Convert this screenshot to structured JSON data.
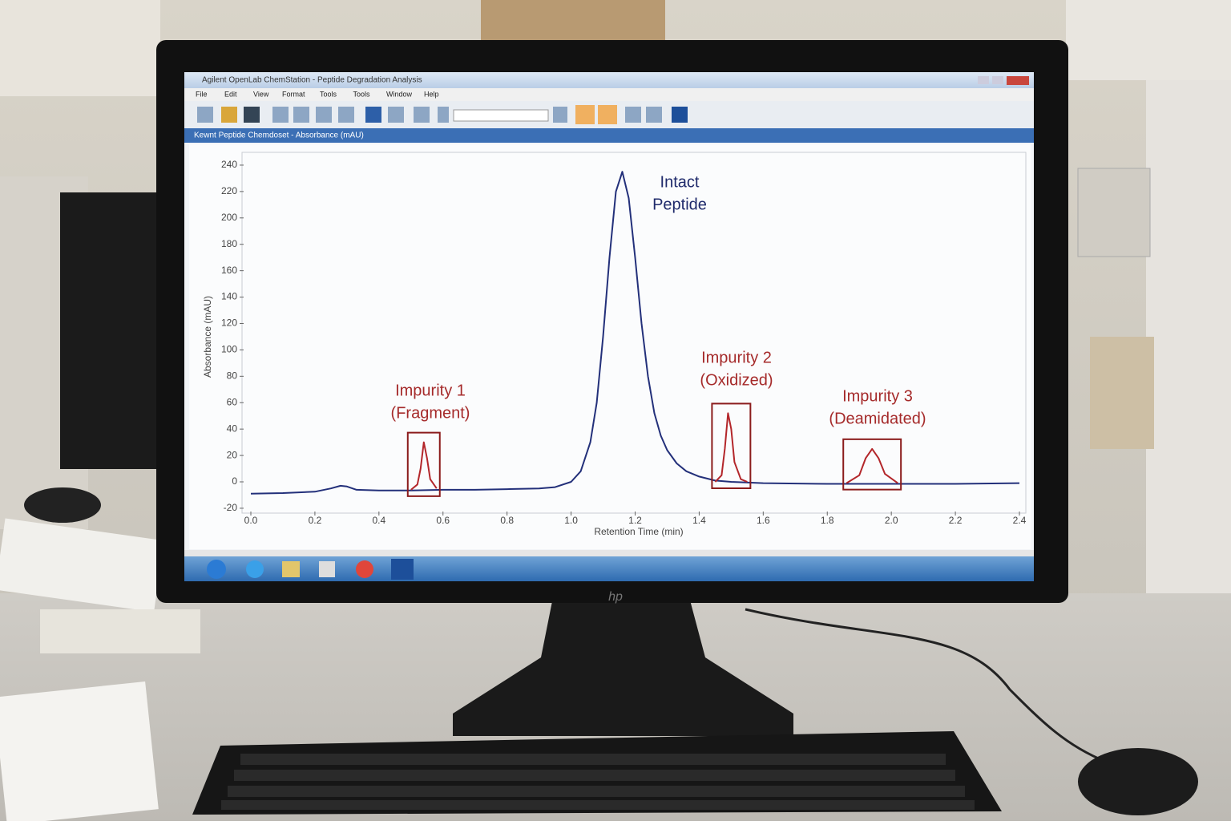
{
  "window": {
    "title": "Agilent OpenLab ChemStation - Peptide Degradation Analysis",
    "menu": [
      "File",
      "Edit",
      "View",
      "Format",
      "Tools",
      "Tools",
      "Window",
      "Help"
    ],
    "pane_title": "Kewnt Peptide Chemdoset - Absorbance (mAU)"
  },
  "chart_data": {
    "type": "line",
    "x_label": "Retention Time (min)",
    "y_label": "Absorbance (mAU)",
    "xlim": [
      0,
      2.4
    ],
    "ylim": [
      -20,
      245
    ],
    "xticks": [
      {
        "value": 0,
        "label": "0.0"
      },
      0.2,
      0.4,
      0.6,
      0.8,
      {
        "value": 1,
        "label": "1.0"
      },
      1.2,
      1.4,
      1.6,
      1.8,
      {
        "value": 2,
        "label": "2.0"
      },
      2.2,
      2.4
    ],
    "yticks": [
      -20,
      0,
      20,
      40,
      60,
      80,
      100,
      120,
      140,
      160,
      180,
      200,
      220,
      240
    ],
    "series": [
      {
        "color": "#23307a",
        "x": [
          0,
          0.1,
          0.2,
          0.25,
          0.28,
          0.3,
          0.33,
          0.4,
          0.5,
          0.6,
          0.7,
          0.8,
          0.9,
          0.95,
          1.0,
          1.03,
          1.06,
          1.08,
          1.1,
          1.12,
          1.14,
          1.16,
          1.18,
          1.2,
          1.22,
          1.24,
          1.26,
          1.28,
          1.3,
          1.33,
          1.36,
          1.4,
          1.45,
          1.5,
          1.6,
          1.8,
          2.0,
          2.2,
          2.4
        ],
        "values": [
          -9,
          -8.5,
          -7.5,
          -5,
          -3,
          -3.5,
          -6,
          -6.5,
          -6.5,
          -6,
          -6,
          -5.5,
          -5,
          -4,
          0,
          8,
          30,
          60,
          110,
          170,
          220,
          235,
          215,
          170,
          120,
          80,
          52,
          35,
          24,
          14,
          8,
          4,
          1,
          0,
          -1,
          -1.5,
          -1.5,
          -1.5,
          -1
        ]
      },
      {
        "color": "#b3262a",
        "x": [
          0.5,
          0.52,
          0.53,
          0.54,
          0.55,
          0.56,
          0.58
        ],
        "values": [
          -6,
          -2,
          10,
          30,
          18,
          2,
          -5
        ]
      },
      {
        "color": "#b3262a",
        "x": [
          1.45,
          1.47,
          1.48,
          1.49,
          1.5,
          1.51,
          1.53,
          1.55
        ],
        "values": [
          0,
          5,
          25,
          52,
          40,
          15,
          2,
          0
        ]
      },
      {
        "color": "#b3262a",
        "x": [
          1.86,
          1.9,
          1.92,
          1.94,
          1.96,
          1.98,
          2.02
        ],
        "values": [
          -1,
          5,
          18,
          25,
          18,
          6,
          -1
        ]
      }
    ],
    "annotations": [
      {
        "text": [
          "Intact",
          "Peptide"
        ],
        "color": "#1f2a6b"
      },
      {
        "text": [
          "Impurity 1",
          "(Fragment)"
        ],
        "color": "#a52a2a"
      },
      {
        "text": [
          "Impurity 2",
          "(Oxidized)"
        ],
        "color": "#a52a2a"
      },
      {
        "text": [
          "Impurity 3",
          "(Deamidated)"
        ],
        "color": "#a52a2a"
      }
    ]
  }
}
